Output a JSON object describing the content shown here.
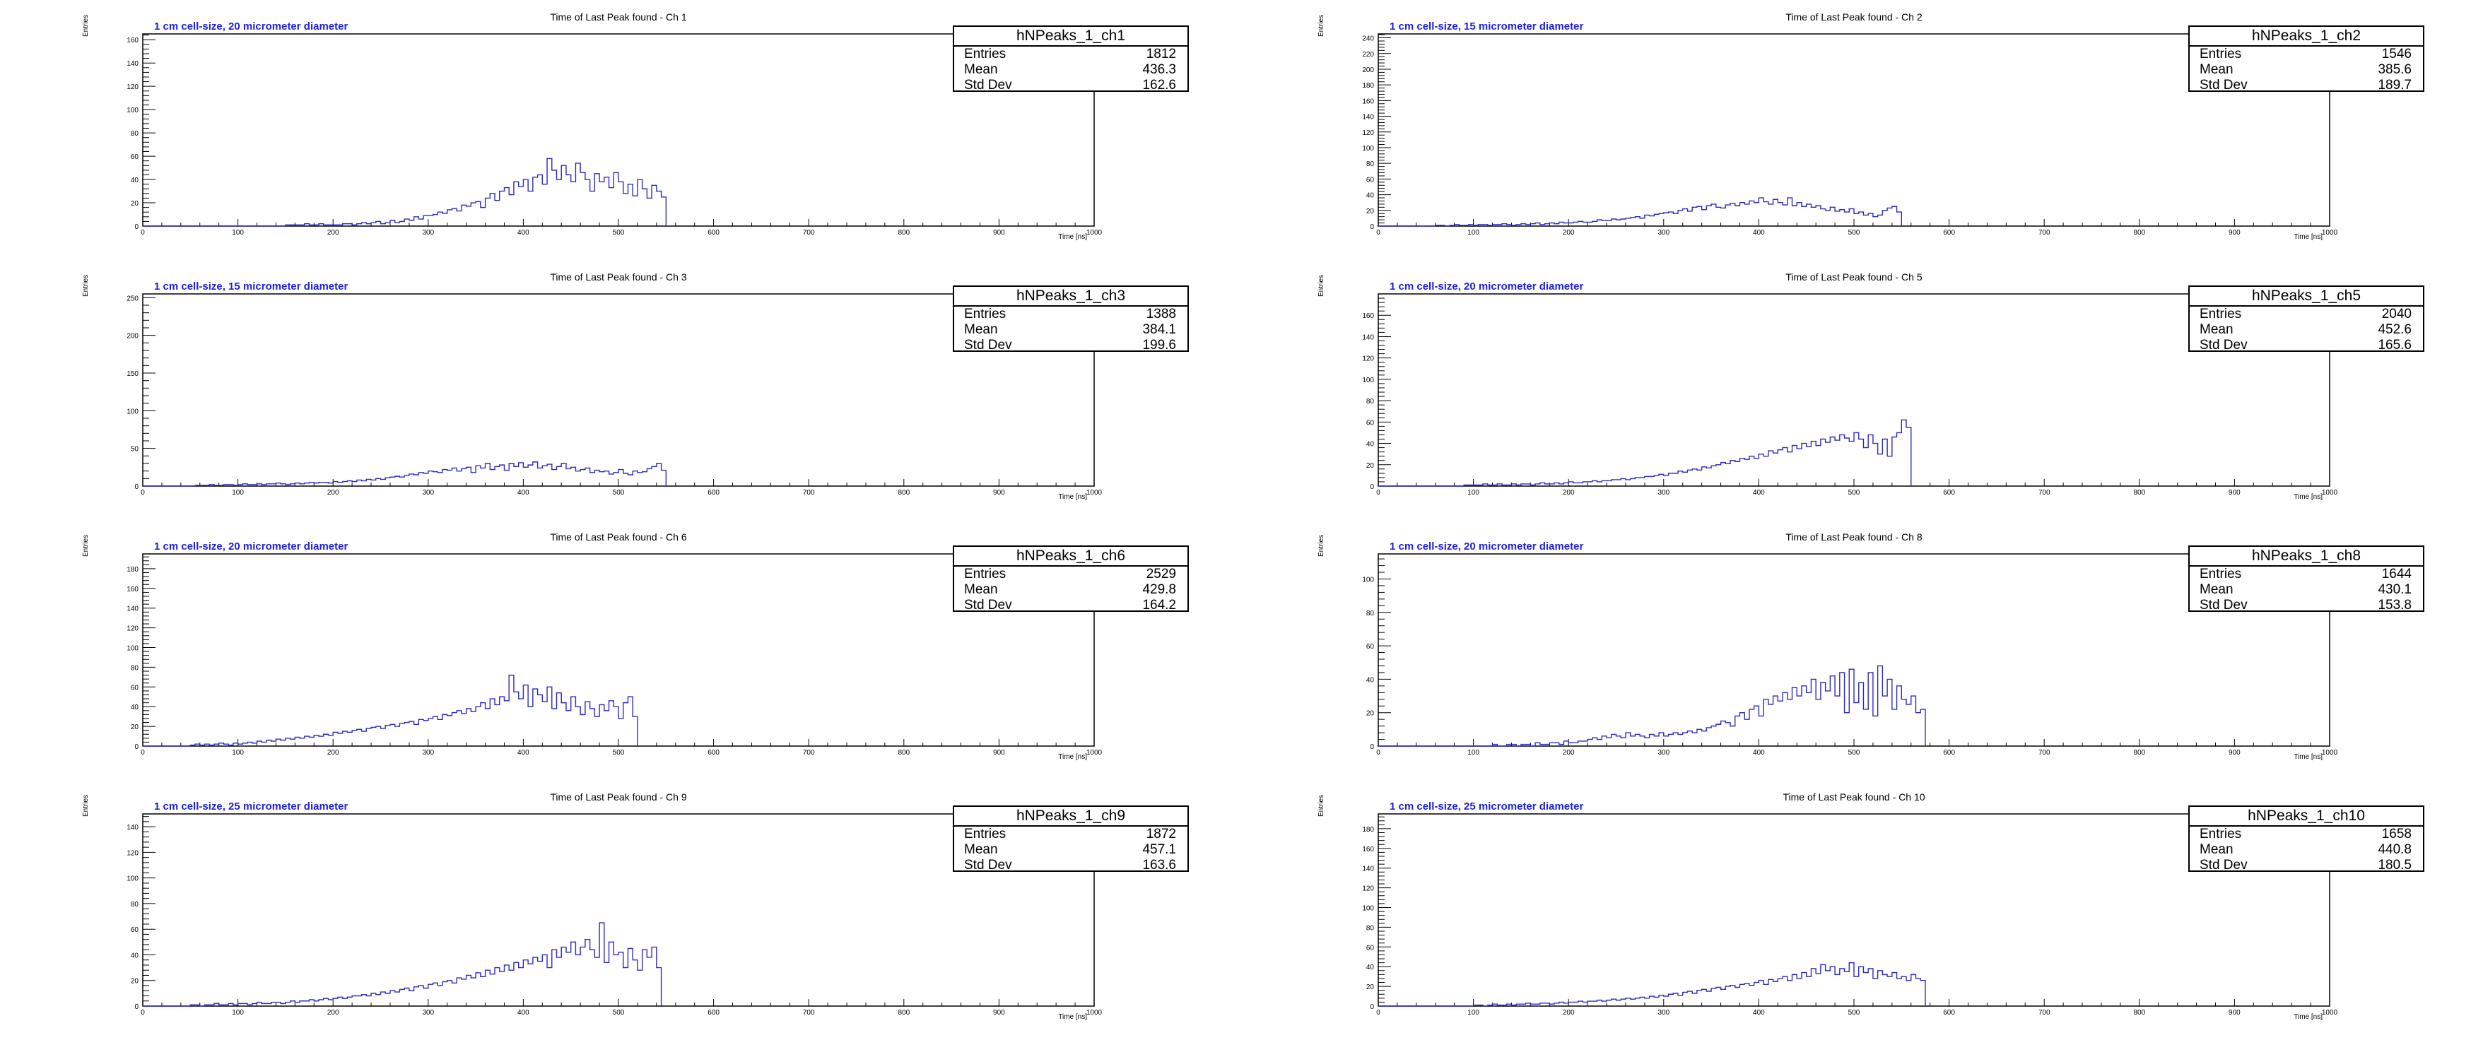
{
  "colors": {
    "line": "#2b2bbf",
    "note": "#1d22d8",
    "axis": "#000000"
  },
  "chart_data": [
    {
      "type": "bar",
      "title": "Time of Last Peak found - Ch 1",
      "note": "1 cm cell-size, 20 micrometer diameter",
      "xlabel": "Time [ns]",
      "ylabel": "Entries",
      "xlim": [
        0,
        1000
      ],
      "ylim": [
        0,
        165
      ],
      "yticks": [
        0,
        20,
        40,
        60,
        80,
        100,
        120,
        140,
        160
      ],
      "stats": {
        "name": "hNPeaks_1_ch1",
        "entries": "1812",
        "mean": "436.3",
        "std_dev": "162.6"
      },
      "bins": {
        "x0": 0,
        "width": 5,
        "values": [
          0,
          0,
          0,
          0,
          0,
          0,
          0,
          0,
          0,
          0,
          0,
          0,
          0,
          0,
          0,
          0,
          0,
          0,
          0,
          0,
          0,
          0,
          0,
          0,
          0,
          0,
          0,
          0,
          0,
          0,
          1,
          1,
          1,
          1,
          2,
          1,
          1,
          2,
          1,
          1,
          1,
          1,
          2,
          2,
          1,
          2,
          3,
          2,
          3,
          4,
          2,
          3,
          5,
          3,
          4,
          6,
          5,
          8,
          6,
          9,
          9,
          10,
          12,
          11,
          14,
          15,
          13,
          18,
          17,
          20,
          21,
          16,
          24,
          28,
          22,
          30,
          33,
          27,
          38,
          34,
          40,
          30,
          42,
          44,
          36,
          58,
          48,
          40,
          52,
          44,
          38,
          54,
          46,
          40,
          30,
          45,
          38,
          42,
          33,
          46,
          38,
          28,
          36,
          26,
          40,
          32,
          24,
          35,
          30,
          25
        ]
      }
    },
    {
      "type": "bar",
      "title": "Time of Last Peak found - Ch 2",
      "note": "1 cm cell-size, 15 micrometer diameter",
      "xlabel": "Time [ns]",
      "ylabel": "Entries",
      "xlim": [
        0,
        1000
      ],
      "ylim": [
        0,
        245
      ],
      "yticks": [
        0,
        20,
        40,
        60,
        80,
        100,
        120,
        140,
        160,
        180,
        200,
        220,
        240
      ],
      "stats": {
        "name": "hNPeaks_1_ch2",
        "entries": "1546",
        "mean": "385.6",
        "std_dev": "189.7"
      },
      "bins": {
        "x0": 0,
        "width": 5,
        "values": [
          0,
          0,
          0,
          0,
          0,
          0,
          0,
          0,
          0,
          0,
          0,
          0,
          1,
          1,
          0,
          1,
          2,
          1,
          1,
          2,
          1,
          2,
          2,
          1,
          2,
          2,
          3,
          2,
          1,
          2,
          3,
          2,
          3,
          4,
          2,
          3,
          4,
          3,
          5,
          4,
          4,
          5,
          6,
          5,
          5,
          6,
          8,
          7,
          7,
          9,
          8,
          9,
          10,
          11,
          12,
          10,
          14,
          13,
          15,
          16,
          17,
          18,
          16,
          20,
          22,
          19,
          24,
          25,
          21,
          26,
          28,
          24,
          23,
          27,
          29,
          26,
          30,
          28,
          32,
          30,
          36,
          31,
          28,
          34,
          30,
          27,
          36,
          26,
          30,
          25,
          28,
          24,
          26,
          22,
          20,
          24,
          19,
          21,
          18,
          22,
          16,
          18,
          14,
          16,
          12,
          14,
          20,
          23,
          25,
          18
        ]
      }
    },
    {
      "type": "bar",
      "title": "Time of Last Peak found - Ch 3",
      "note": "1 cm cell-size, 15 micrometer diameter",
      "xlabel": "Time [ns]",
      "ylabel": "Entries",
      "xlim": [
        0,
        1000
      ],
      "ylim": [
        0,
        255
      ],
      "yticks": [
        0,
        50,
        100,
        150,
        200,
        250
      ],
      "stats": {
        "name": "hNPeaks_1_ch3",
        "entries": "1388",
        "mean": "384.1",
        "std_dev": "199.6"
      },
      "bins": {
        "x0": 0,
        "width": 5,
        "values": [
          0,
          0,
          0,
          0,
          0,
          0,
          0,
          0,
          0,
          0,
          0,
          1,
          1,
          1,
          2,
          1,
          1,
          2,
          2,
          1,
          2,
          3,
          2,
          2,
          3,
          2,
          3,
          3,
          4,
          3,
          2,
          3,
          4,
          3,
          4,
          5,
          4,
          5,
          5,
          4,
          6,
          5,
          6,
          7,
          6,
          8,
          7,
          9,
          8,
          10,
          9,
          11,
          12,
          13,
          12,
          14,
          16,
          15,
          18,
          17,
          20,
          19,
          18,
          22,
          21,
          24,
          20,
          23,
          25,
          18,
          27,
          24,
          30,
          22,
          26,
          28,
          21,
          30,
          26,
          31,
          25,
          28,
          32,
          24,
          27,
          29,
          22,
          26,
          30,
          23,
          25,
          20,
          22,
          24,
          18,
          21,
          19,
          20,
          16,
          18,
          22,
          17,
          15,
          20,
          18,
          19,
          23,
          26,
          30,
          21
        ]
      }
    },
    {
      "type": "bar",
      "title": "Time of Last Peak found - Ch 5",
      "note": "1 cm cell-size, 20 micrometer diameter",
      "xlabel": "Time [ns]",
      "ylabel": "Entries",
      "xlim": [
        0,
        1000
      ],
      "ylim": [
        0,
        180
      ],
      "yticks": [
        0,
        20,
        40,
        60,
        80,
        100,
        120,
        140,
        160
      ],
      "stats": {
        "name": "hNPeaks_1_ch5",
        "entries": "2040",
        "mean": "452.6",
        "std_dev": "165.6"
      },
      "bins": {
        "x0": 0,
        "width": 5,
        "values": [
          0,
          0,
          0,
          0,
          0,
          0,
          0,
          0,
          0,
          0,
          0,
          0,
          0,
          0,
          0,
          0,
          0,
          0,
          1,
          1,
          1,
          1,
          2,
          1,
          1,
          2,
          1,
          1,
          2,
          1,
          2,
          2,
          1,
          2,
          3,
          2,
          2,
          3,
          2,
          3,
          4,
          3,
          3,
          4,
          4,
          5,
          4,
          5,
          5,
          6,
          6,
          7,
          6,
          7,
          8,
          8,
          9,
          9,
          10,
          11,
          10,
          12,
          12,
          14,
          13,
          15,
          16,
          15,
          18,
          17,
          19,
          20,
          22,
          21,
          24,
          23,
          26,
          25,
          28,
          26,
          30,
          28,
          33,
          31,
          34,
          36,
          32,
          38,
          35,
          40,
          37,
          42,
          38,
          44,
          41,
          46,
          43,
          48,
          45,
          42,
          50,
          44,
          36,
          48,
          40,
          30,
          44,
          28,
          46,
          50,
          62,
          55
        ]
      }
    },
    {
      "type": "bar",
      "title": "Time of Last Peak found - Ch 6",
      "note": "1 cm cell-size, 20 micrometer diameter",
      "xlabel": "Time [ns]",
      "ylabel": "Entries",
      "xlim": [
        0,
        1000
      ],
      "ylim": [
        0,
        195
      ],
      "yticks": [
        0,
        20,
        40,
        60,
        80,
        100,
        120,
        140,
        160,
        180
      ],
      "stats": {
        "name": "hNPeaks_1_ch6",
        "entries": "2529",
        "mean": "429.8",
        "std_dev": "164.2"
      },
      "bins": {
        "x0": 0,
        "width": 5,
        "values": [
          0,
          0,
          0,
          0,
          0,
          0,
          0,
          0,
          0,
          0,
          1,
          2,
          1,
          2,
          1,
          2,
          3,
          2,
          1,
          3,
          2,
          3,
          4,
          3,
          5,
          4,
          6,
          5,
          7,
          6,
          8,
          7,
          9,
          8,
          10,
          9,
          11,
          10,
          12,
          11,
          14,
          13,
          15,
          14,
          16,
          17,
          15,
          18,
          19,
          20,
          18,
          21,
          22,
          20,
          23,
          24,
          25,
          22,
          27,
          26,
          28,
          30,
          27,
          32,
          31,
          34,
          36,
          33,
          38,
          35,
          40,
          44,
          38,
          48,
          42,
          50,
          46,
          72,
          55,
          48,
          62,
          40,
          58,
          52,
          45,
          60,
          38,
          54,
          44,
          36,
          50,
          40,
          32,
          45,
          38,
          30,
          42,
          36,
          46,
          40,
          28,
          44,
          50,
          30
        ]
      }
    },
    {
      "type": "bar",
      "title": "Time of Last Peak found - Ch 8",
      "note": "1 cm cell-size, 20 micrometer diameter",
      "xlabel": "Time [ns]",
      "ylabel": "Entries",
      "xlim": [
        0,
        1000
      ],
      "ylim": [
        0,
        115
      ],
      "yticks": [
        0,
        20,
        40,
        60,
        80,
        100
      ],
      "stats": {
        "name": "hNPeaks_1_ch8",
        "entries": "1644",
        "mean": "430.1",
        "std_dev": "153.8"
      },
      "bins": {
        "x0": 0,
        "width": 5,
        "values": [
          0,
          0,
          0,
          0,
          0,
          0,
          0,
          0,
          0,
          0,
          0,
          0,
          0,
          0,
          0,
          0,
          0,
          0,
          0,
          0,
          0,
          0,
          0,
          0,
          1,
          0,
          0,
          1,
          1,
          0,
          1,
          1,
          0,
          2,
          1,
          1,
          2,
          2,
          1,
          3,
          2,
          2,
          3,
          3,
          4,
          5,
          4,
          6,
          5,
          7,
          6,
          5,
          8,
          6,
          7,
          6,
          5,
          7,
          6,
          8,
          6,
          7,
          8,
          7,
          8,
          9,
          8,
          10,
          9,
          11,
          12,
          13,
          15,
          14,
          12,
          18,
          20,
          16,
          22,
          24,
          18,
          28,
          25,
          30,
          27,
          32,
          28,
          35,
          30,
          36,
          32,
          40,
          28,
          38,
          33,
          42,
          30,
          44,
          20,
          46,
          26,
          38,
          22,
          44,
          18,
          48,
          30,
          40,
          22,
          36,
          28,
          25,
          30,
          20,
          22
        ]
      }
    },
    {
      "type": "bar",
      "title": "Time of Last Peak found - Ch 9",
      "note": "1 cm cell-size, 25 micrometer diameter",
      "xlabel": "Time [ns]",
      "ylabel": "Entries",
      "xlim": [
        0,
        1000
      ],
      "ylim": [
        0,
        150
      ],
      "yticks": [
        0,
        20,
        40,
        60,
        80,
        100,
        120,
        140
      ],
      "stats": {
        "name": "hNPeaks_1_ch9",
        "entries": "1872",
        "mean": "457.1",
        "std_dev": "163.6"
      },
      "bins": {
        "x0": 0,
        "width": 5,
        "values": [
          0,
          0,
          0,
          0,
          0,
          0,
          0,
          0,
          0,
          0,
          1,
          1,
          0,
          1,
          1,
          2,
          1,
          1,
          2,
          1,
          2,
          2,
          1,
          2,
          3,
          2,
          2,
          3,
          3,
          2,
          3,
          4,
          3,
          4,
          4,
          5,
          4,
          5,
          6,
          5,
          6,
          7,
          6,
          7,
          8,
          8,
          9,
          8,
          10,
          9,
          11,
          10,
          12,
          11,
          13,
          14,
          12,
          15,
          16,
          14,
          17,
          18,
          16,
          19,
          20,
          18,
          22,
          21,
          24,
          22,
          26,
          23,
          28,
          25,
          30,
          27,
          32,
          28,
          34,
          30,
          36,
          33,
          38,
          35,
          40,
          30,
          44,
          38,
          46,
          42,
          50,
          40,
          46,
          52,
          44,
          38,
          65,
          34,
          50,
          40,
          42,
          30,
          45,
          36,
          28,
          44,
          38,
          46,
          30
        ]
      }
    },
    {
      "type": "bar",
      "title": "Time of Last Peak found - Ch 10",
      "note": "1 cm cell-size, 25 micrometer diameter",
      "xlabel": "Time [ns]",
      "ylabel": "Entries",
      "xlim": [
        0,
        1000
      ],
      "ylim": [
        0,
        195
      ],
      "yticks": [
        0,
        20,
        40,
        60,
        80,
        100,
        120,
        140,
        160,
        180
      ],
      "stats": {
        "name": "hNPeaks_1_ch10",
        "entries": "1658",
        "mean": "440.8",
        "std_dev": "180.5"
      },
      "bins": {
        "x0": 0,
        "width": 5,
        "values": [
          0,
          0,
          0,
          0,
          0,
          0,
          0,
          0,
          0,
          0,
          0,
          0,
          0,
          0,
          0,
          0,
          0,
          0,
          0,
          0,
          1,
          1,
          0,
          1,
          2,
          1,
          1,
          2,
          1,
          2,
          2,
          3,
          2,
          2,
          3,
          3,
          2,
          3,
          4,
          3,
          4,
          4,
          5,
          4,
          5,
          5,
          6,
          5,
          6,
          7,
          6,
          7,
          8,
          7,
          8,
          9,
          8,
          10,
          9,
          11,
          10,
          12,
          13,
          11,
          14,
          15,
          13,
          16,
          17,
          15,
          18,
          19,
          17,
          20,
          21,
          19,
          22,
          23,
          21,
          24,
          26,
          22,
          27,
          25,
          28,
          30,
          26,
          32,
          28,
          34,
          30,
          38,
          33,
          42,
          36,
          40,
          32,
          38,
          35,
          44,
          30,
          40,
          34,
          38,
          28,
          36,
          32,
          30,
          34,
          28,
          30,
          26,
          32,
          28,
          26
        ]
      }
    }
  ]
}
